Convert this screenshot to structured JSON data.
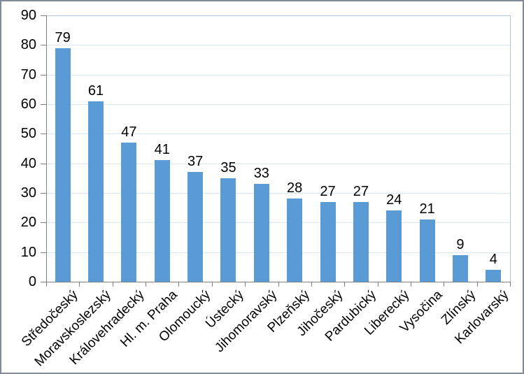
{
  "chart_data": {
    "type": "bar",
    "title": "",
    "xlabel": "",
    "ylabel": "",
    "categories": [
      "Středočeský",
      "Moravskoslezský",
      "Královehradecký",
      "Hl. m. Praha",
      "Olomoucký",
      "Ústecký",
      "Jihomoravský",
      "Plzeňský",
      "Jihočeský",
      "Pardubický",
      "Liberecký",
      "Vysočina",
      "Zlínský",
      "Karlovarský"
    ],
    "values": [
      79,
      61,
      47,
      41,
      37,
      35,
      33,
      28,
      27,
      27,
      24,
      21,
      9,
      4
    ],
    "value_labels_shown": true,
    "ylim": [
      0,
      90
    ],
    "yticks": [
      0,
      10,
      20,
      30,
      40,
      50,
      60,
      70,
      80,
      90
    ],
    "grid": true,
    "legend": "none",
    "x_label_rotation_deg": 45
  },
  "colors": {
    "bar_fill": "#5B9BD5",
    "gridline": "#DCE6F1",
    "plot_border": "#AFC7E2",
    "axis": "#808080",
    "text": "#000000",
    "frame_border": "#7F8B96",
    "background": "#FFFFFF"
  }
}
